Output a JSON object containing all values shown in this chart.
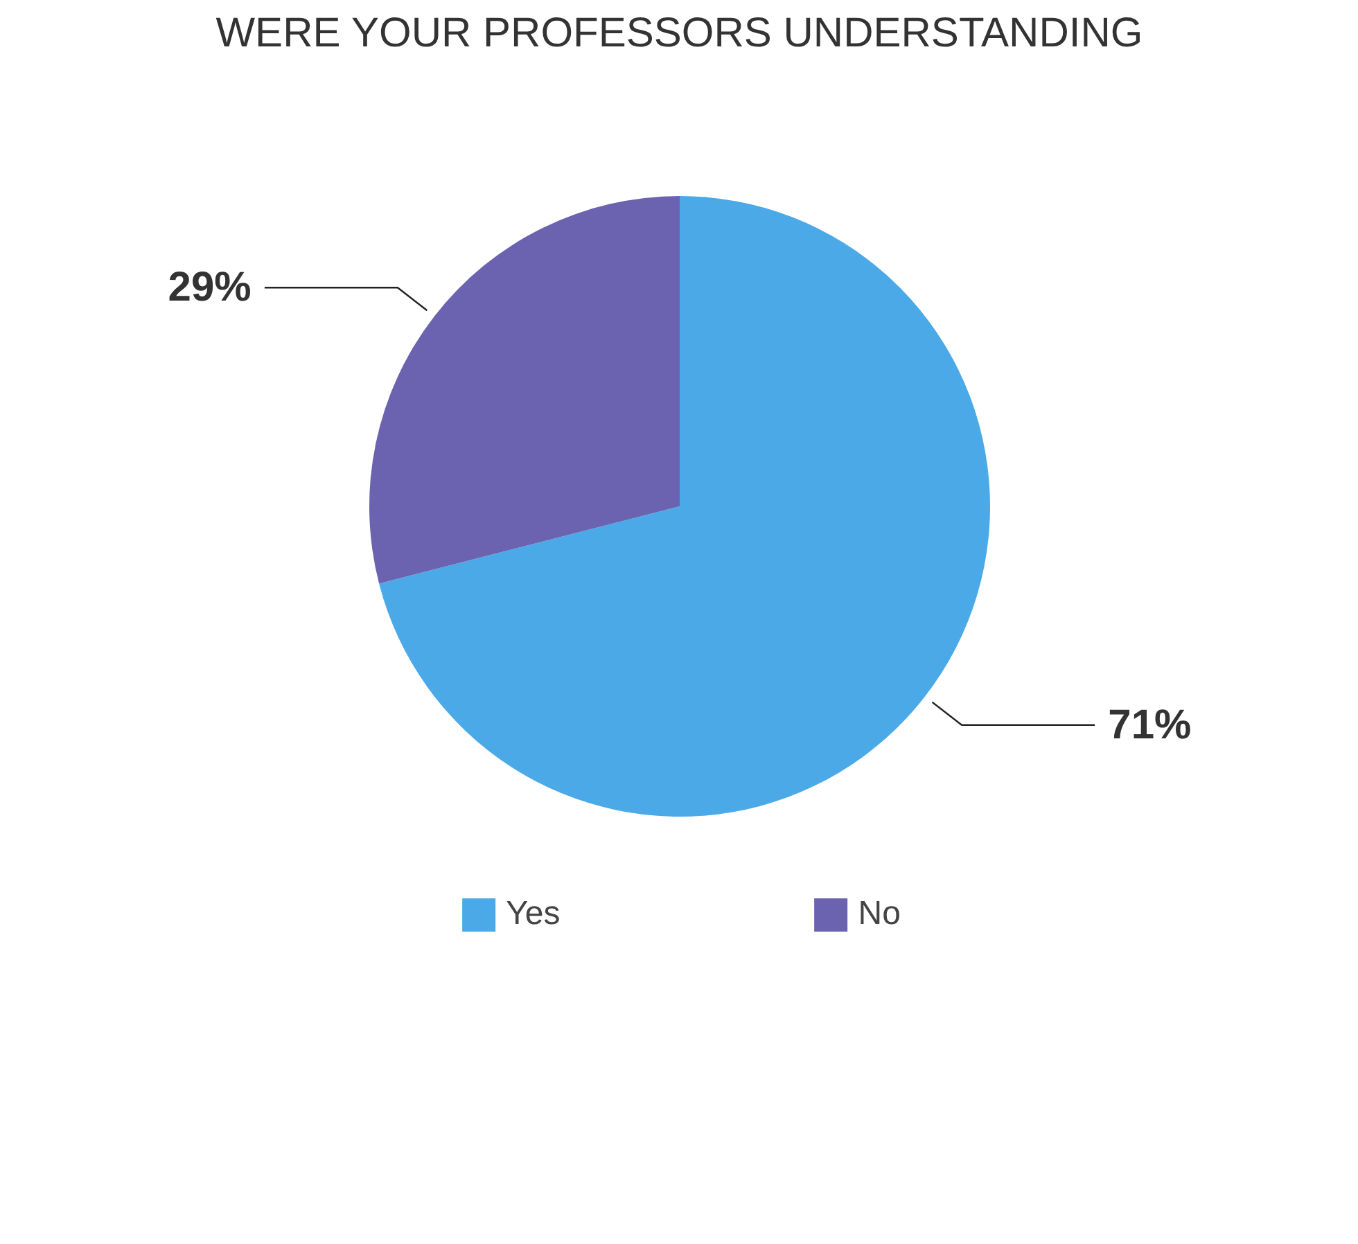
{
  "chart_data": {
    "type": "pie",
    "title": "WERE YOUR PROFESSORS UNDERSTANDING",
    "categories": [
      "Yes",
      "No"
    ],
    "values": [
      71,
      29
    ],
    "value_labels": [
      "71%",
      "29%"
    ],
    "colors": [
      "#4aa9e6",
      "#6b62b0"
    ],
    "legend": "bottom"
  }
}
